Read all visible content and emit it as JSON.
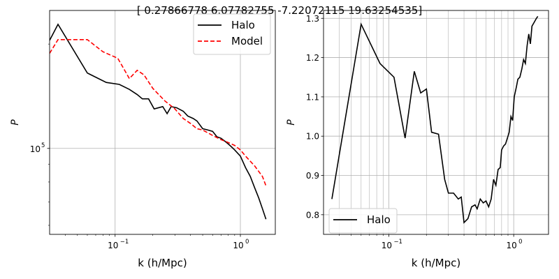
{
  "figure": {
    "suptitle": "[ 0.27866778  6.07782755 -7.22072115 19.63254535]"
  },
  "chart_data": [
    {
      "type": "line",
      "xscale": "log",
      "yscale": "log",
      "xlabel": "k (h/Mpc)",
      "ylabel": "P",
      "xlim": [
        0.03,
        1.9
      ],
      "ylim": [
        56500,
        250000
      ],
      "grid": true,
      "legend": "top-right",
      "xticks": [
        {
          "value": 0.1,
          "label": "10",
          "exp": "−1"
        },
        {
          "value": 1,
          "label": "10",
          "exp": "0"
        }
      ],
      "yticks": [
        {
          "value": 100000,
          "label": "10",
          "exp": "5"
        }
      ],
      "series": [
        {
          "name": "Halo",
          "color": "#000000",
          "dash": "solid",
          "points": [
            [
              0.03,
              205000
            ],
            [
              0.035,
              228000
            ],
            [
              0.06,
              165000
            ],
            [
              0.085,
              155000
            ],
            [
              0.108,
              153000
            ],
            [
              0.13,
              148000
            ],
            [
              0.15,
              143000
            ],
            [
              0.165,
              139000
            ],
            [
              0.185,
              139000
            ],
            [
              0.205,
              130000
            ],
            [
              0.24,
              132000
            ],
            [
              0.26,
              126000
            ],
            [
              0.28,
              132000
            ],
            [
              0.31,
              131000
            ],
            [
              0.35,
              128000
            ],
            [
              0.38,
              124000
            ],
            [
              0.42,
              122000
            ],
            [
              0.45,
              120000
            ],
            [
              0.5,
              114000
            ],
            [
              0.55,
              113000
            ],
            [
              0.6,
              112000
            ],
            [
              0.65,
              108000
            ],
            [
              0.7,
              107000
            ],
            [
              0.75,
              105000
            ],
            [
              0.8,
              103000
            ],
            [
              0.85,
              101000
            ],
            [
              0.9,
              99000
            ],
            [
              1.0,
              95000
            ],
            [
              1.1,
              88000
            ],
            [
              1.2,
              83000
            ],
            [
              1.3,
              77000
            ],
            [
              1.4,
              72000
            ],
            [
              1.5,
              67000
            ],
            [
              1.6,
              62500
            ]
          ]
        },
        {
          "name": "Model",
          "color": "#ff0000",
          "dash": "dashed",
          "points": [
            [
              0.03,
              188000
            ],
            [
              0.035,
              206000
            ],
            [
              0.06,
              206000
            ],
            [
              0.08,
              190000
            ],
            [
              0.105,
              182000
            ],
            [
              0.13,
              159000
            ],
            [
              0.15,
              168000
            ],
            [
              0.17,
              163000
            ],
            [
              0.2,
              149000
            ],
            [
              0.25,
              137000
            ],
            [
              0.3,
              130000
            ],
            [
              0.35,
              122000
            ],
            [
              0.4,
              118000
            ],
            [
              0.45,
              114000
            ],
            [
              0.5,
              113000
            ],
            [
              0.6,
              109000
            ],
            [
              0.7,
              106000
            ],
            [
              0.8,
              104000
            ],
            [
              0.9,
              102000
            ],
            [
              1.0,
              99000
            ],
            [
              1.1,
              95000
            ],
            [
              1.3,
              89000
            ],
            [
              1.5,
              83000
            ],
            [
              1.6,
              78000
            ]
          ]
        }
      ]
    },
    {
      "type": "line",
      "xscale": "log",
      "yscale": "linear",
      "xlabel": "k (h/Mpc)",
      "ylabel": "P",
      "xlim": [
        0.03,
        1.9
      ],
      "ylim": [
        0.75,
        1.32
      ],
      "grid": true,
      "legend": "bottom-left",
      "xticks": [
        {
          "value": 0.1,
          "label": "10",
          "exp": "−1"
        },
        {
          "value": 1,
          "label": "10",
          "exp": "0"
        }
      ],
      "yticks": [
        {
          "value": 0.8,
          "label": "0.8"
        },
        {
          "value": 0.9,
          "label": "0.9"
        },
        {
          "value": 1.0,
          "label": "1.0"
        },
        {
          "value": 1.1,
          "label": "1.1"
        },
        {
          "value": 1.2,
          "label": "1.2"
        },
        {
          "value": 1.3,
          "label": "1.3"
        }
      ],
      "series": [
        {
          "name": "Halo",
          "color": "#000000",
          "dash": "solid",
          "points": [
            [
              0.035,
              0.84
            ],
            [
              0.06,
              1.285
            ],
            [
              0.085,
              1.185
            ],
            [
              0.11,
              1.15
            ],
            [
              0.135,
              0.995
            ],
            [
              0.16,
              1.165
            ],
            [
              0.18,
              1.11
            ],
            [
              0.2,
              1.12
            ],
            [
              0.22,
              1.01
            ],
            [
              0.25,
              1.005
            ],
            [
              0.28,
              0.89
            ],
            [
              0.3,
              0.855
            ],
            [
              0.33,
              0.855
            ],
            [
              0.36,
              0.84
            ],
            [
              0.38,
              0.845
            ],
            [
              0.4,
              0.78
            ],
            [
              0.43,
              0.79
            ],
            [
              0.46,
              0.82
            ],
            [
              0.49,
              0.825
            ],
            [
              0.51,
              0.815
            ],
            [
              0.54,
              0.84
            ],
            [
              0.57,
              0.83
            ],
            [
              0.6,
              0.835
            ],
            [
              0.63,
              0.82
            ],
            [
              0.66,
              0.84
            ],
            [
              0.69,
              0.89
            ],
            [
              0.72,
              0.875
            ],
            [
              0.75,
              0.915
            ],
            [
              0.78,
              0.92
            ],
            [
              0.8,
              0.965
            ],
            [
              0.83,
              0.975
            ],
            [
              0.86,
              0.98
            ],
            [
              0.9,
              1.0
            ],
            [
              0.92,
              1.01
            ],
            [
              0.95,
              1.05
            ],
            [
              0.98,
              1.04
            ],
            [
              1.01,
              1.1
            ],
            [
              1.05,
              1.125
            ],
            [
              1.08,
              1.145
            ],
            [
              1.12,
              1.15
            ],
            [
              1.16,
              1.17
            ],
            [
              1.2,
              1.195
            ],
            [
              1.24,
              1.185
            ],
            [
              1.28,
              1.23
            ],
            [
              1.32,
              1.26
            ],
            [
              1.36,
              1.235
            ],
            [
              1.4,
              1.28
            ],
            [
              1.46,
              1.29
            ],
            [
              1.52,
              1.3
            ],
            [
              1.56,
              1.305
            ]
          ]
        }
      ]
    }
  ]
}
